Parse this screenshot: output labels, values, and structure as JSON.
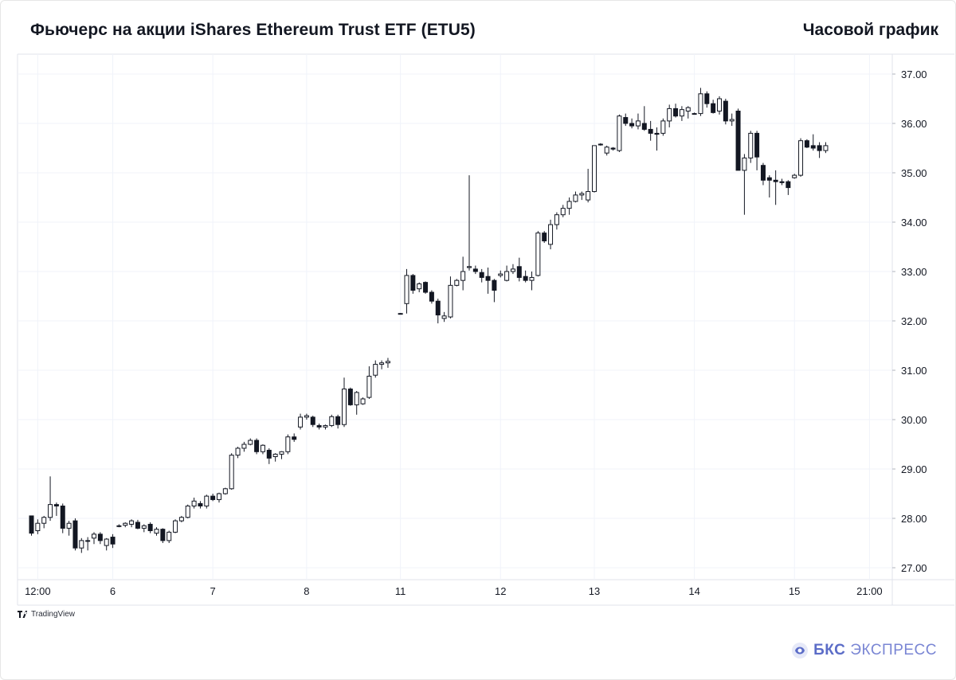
{
  "header": {
    "title": "Фьючерс на акции iShares Ethereum Trust ETF (ETU5)",
    "timeframe": "Часовой график"
  },
  "footer": {
    "tv_logo_text": "TradingView",
    "brand_bold": "БКС",
    "brand_rest": "ЭКСПРЕСС"
  },
  "colors": {
    "up_fill": "#ffffff",
    "down_fill": "#131722",
    "wick": "#131722",
    "grid": "#f0f3fa",
    "axis_text": "#131722",
    "brand": "#5b6cc7"
  },
  "chart_data": {
    "type": "candlestick",
    "title": "Фьючерс на акции iShares Ethereum Trust ETF (ETU5)",
    "timeframe": "Часовой график",
    "ylim": [
      26.8,
      37.2
    ],
    "y_ticks": [
      "27.00",
      "28.00",
      "29.00",
      "30.00",
      "31.00",
      "32.00",
      "33.00",
      "34.00",
      "35.00",
      "36.00",
      "37.00"
    ],
    "x_ticks": [
      {
        "label": "12:00",
        "index": 1
      },
      {
        "label": "6",
        "index": 13
      },
      {
        "label": "7",
        "index": 29
      },
      {
        "label": "8",
        "index": 44
      },
      {
        "label": "11",
        "index": 59
      },
      {
        "label": "12",
        "index": 75
      },
      {
        "label": "13",
        "index": 90
      },
      {
        "label": "14",
        "index": 106
      },
      {
        "label": "15",
        "index": 122
      },
      {
        "label": "21:00",
        "index": 134
      }
    ],
    "candles": [
      [
        28.05,
        28.02,
        27.65,
        27.7
      ],
      [
        27.75,
        27.98,
        27.68,
        27.9
      ],
      [
        27.9,
        28.05,
        27.8,
        28.02
      ],
      [
        28.02,
        28.85,
        27.95,
        28.28
      ],
      [
        28.28,
        28.32,
        28.05,
        28.25
      ],
      [
        28.25,
        28.3,
        27.7,
        27.8
      ],
      [
        27.8,
        27.95,
        27.65,
        27.9
      ],
      [
        27.95,
        28.0,
        27.35,
        27.4
      ],
      [
        27.4,
        27.6,
        27.3,
        27.55
      ],
      [
        27.55,
        27.62,
        27.35,
        27.55
      ],
      [
        27.6,
        27.72,
        27.48,
        27.68
      ],
      [
        27.68,
        27.72,
        27.48,
        27.55
      ],
      [
        27.45,
        27.6,
        27.35,
        27.58
      ],
      [
        27.62,
        27.68,
        27.4,
        27.48
      ],
      [
        27.85,
        27.88,
        27.82,
        27.85
      ],
      [
        27.86,
        27.92,
        27.82,
        27.9
      ],
      [
        27.88,
        27.98,
        27.82,
        27.95
      ],
      [
        27.92,
        27.97,
        27.78,
        27.8
      ],
      [
        27.8,
        27.88,
        27.72,
        27.85
      ],
      [
        27.88,
        27.92,
        27.7,
        27.75
      ],
      [
        27.7,
        27.82,
        27.65,
        27.78
      ],
      [
        27.78,
        27.8,
        27.5,
        27.55
      ],
      [
        27.55,
        27.75,
        27.5,
        27.72
      ],
      [
        27.72,
        27.98,
        27.7,
        27.95
      ],
      [
        27.95,
        28.05,
        27.92,
        28.02
      ],
      [
        28.02,
        28.28,
        28.0,
        28.25
      ],
      [
        28.25,
        28.42,
        28.2,
        28.35
      ],
      [
        28.3,
        28.35,
        28.2,
        28.25
      ],
      [
        28.25,
        28.48,
        28.2,
        28.45
      ],
      [
        28.45,
        28.5,
        28.35,
        28.38
      ],
      [
        28.38,
        28.52,
        28.32,
        28.5
      ],
      [
        28.5,
        28.62,
        28.48,
        28.6
      ],
      [
        28.6,
        29.32,
        28.58,
        29.28
      ],
      [
        29.28,
        29.45,
        29.22,
        29.42
      ],
      [
        29.42,
        29.55,
        29.35,
        29.5
      ],
      [
        29.5,
        29.62,
        29.48,
        29.58
      ],
      [
        29.58,
        29.62,
        29.3,
        29.35
      ],
      [
        29.35,
        29.5,
        29.3,
        29.48
      ],
      [
        29.38,
        29.42,
        29.1,
        29.22
      ],
      [
        29.25,
        29.32,
        29.15,
        29.3
      ],
      [
        29.3,
        29.36,
        29.2,
        29.35
      ],
      [
        29.35,
        29.7,
        29.3,
        29.65
      ],
      [
        29.65,
        29.72,
        29.55,
        29.6
      ],
      [
        29.85,
        30.12,
        29.8,
        30.05
      ],
      [
        30.05,
        30.12,
        30.0,
        30.08
      ],
      [
        30.05,
        30.08,
        29.85,
        29.9
      ],
      [
        29.88,
        29.92,
        29.8,
        29.85
      ],
      [
        29.85,
        29.9,
        29.8,
        29.88
      ],
      [
        29.88,
        30.1,
        29.85,
        30.06
      ],
      [
        30.06,
        30.1,
        29.82,
        29.9
      ],
      [
        29.9,
        30.85,
        29.85,
        30.62
      ],
      [
        30.62,
        30.65,
        30.28,
        30.3
      ],
      [
        30.3,
        30.58,
        30.1,
        30.55
      ],
      [
        30.32,
        30.45,
        30.3,
        30.42
      ],
      [
        30.45,
        31.08,
        30.42,
        30.88
      ],
      [
        30.9,
        31.2,
        30.85,
        31.12
      ],
      [
        31.12,
        31.2,
        31.02,
        31.15
      ],
      [
        31.15,
        31.25,
        31.05,
        31.18
      ],
      null,
      [
        32.15,
        32.16,
        32.14,
        32.15
      ],
      [
        32.35,
        33.05,
        32.15,
        32.92
      ],
      [
        32.92,
        32.95,
        32.55,
        32.62
      ],
      [
        32.65,
        32.78,
        32.58,
        32.75
      ],
      [
        32.78,
        32.8,
        32.55,
        32.58
      ],
      [
        32.58,
        32.62,
        32.35,
        32.4
      ],
      [
        32.4,
        32.45,
        31.95,
        32.12
      ],
      [
        32.05,
        32.18,
        31.98,
        32.1
      ],
      [
        32.08,
        32.9,
        32.05,
        32.72
      ],
      [
        32.72,
        32.85,
        32.7,
        32.82
      ],
      [
        32.82,
        33.3,
        32.62,
        33.0
      ],
      [
        33.08,
        34.95,
        33.02,
        33.1
      ],
      [
        33.05,
        33.12,
        32.95,
        33.0
      ],
      [
        32.98,
        33.05,
        32.78,
        32.88
      ],
      [
        32.9,
        33.08,
        32.55,
        32.82
      ],
      [
        32.82,
        32.85,
        32.38,
        32.62
      ],
      [
        32.92,
        33.02,
        32.88,
        32.95
      ],
      [
        32.82,
        33.12,
        32.8,
        33.0
      ],
      [
        33.0,
        33.15,
        32.95,
        33.05
      ],
      [
        33.1,
        33.28,
        32.8,
        32.88
      ],
      [
        32.9,
        33.02,
        32.78,
        32.82
      ],
      [
        32.82,
        33.0,
        32.62,
        32.88
      ],
      [
        32.92,
        33.82,
        32.9,
        33.78
      ],
      [
        33.78,
        33.82,
        33.58,
        33.62
      ],
      [
        33.55,
        34.05,
        33.45,
        33.95
      ],
      [
        33.95,
        34.2,
        33.85,
        34.15
      ],
      [
        34.15,
        34.35,
        34.1,
        34.28
      ],
      [
        34.28,
        34.5,
        34.15,
        34.42
      ],
      [
        34.42,
        34.62,
        34.4,
        34.55
      ],
      [
        34.55,
        34.62,
        34.45,
        34.58
      ],
      [
        34.45,
        35.08,
        34.4,
        34.62
      ],
      [
        34.62,
        35.52,
        34.6,
        35.55
      ],
      [
        35.58,
        35.6,
        35.55,
        35.58
      ],
      [
        35.4,
        35.55,
        35.35,
        35.52
      ],
      [
        35.5,
        35.52,
        35.45,
        35.48
      ],
      [
        35.45,
        36.18,
        35.42,
        36.15
      ],
      [
        36.12,
        36.2,
        35.95,
        36.0
      ],
      [
        36.0,
        36.1,
        35.9,
        35.95
      ],
      [
        35.95,
        36.2,
        35.88,
        36.05
      ],
      [
        36.0,
        36.35,
        35.85,
        35.88
      ],
      [
        35.88,
        36.05,
        35.65,
        35.8
      ],
      [
        35.8,
        35.92,
        35.45,
        35.78
      ],
      [
        35.8,
        36.1,
        35.75,
        36.05
      ],
      [
        36.05,
        36.38,
        35.92,
        36.3
      ],
      [
        36.3,
        36.4,
        36.12,
        36.15
      ],
      [
        36.15,
        36.35,
        36.05,
        36.28
      ],
      [
        36.25,
        36.35,
        36.1,
        36.32
      ],
      [
        36.2,
        36.22,
        36.18,
        36.2
      ],
      [
        36.2,
        36.72,
        36.15,
        36.6
      ],
      [
        36.6,
        36.65,
        36.32,
        36.4
      ],
      [
        36.4,
        36.48,
        36.2,
        36.22
      ],
      [
        36.25,
        36.55,
        36.18,
        36.5
      ],
      [
        36.45,
        36.5,
        35.98,
        36.05
      ],
      [
        36.05,
        36.2,
        35.95,
        36.08
      ],
      [
        36.25,
        36.3,
        35.05,
        35.05
      ],
      [
        35.05,
        35.38,
        34.15,
        35.3
      ],
      [
        35.3,
        35.85,
        35.2,
        35.8
      ],
      [
        35.8,
        35.85,
        35.05,
        35.32
      ],
      [
        35.15,
        35.2,
        34.75,
        34.85
      ],
      [
        34.9,
        34.95,
        34.5,
        34.85
      ],
      [
        34.85,
        35.05,
        34.35,
        34.82
      ],
      [
        34.82,
        34.88,
        34.75,
        34.8
      ],
      [
        34.82,
        34.85,
        34.55,
        34.7
      ],
      [
        34.9,
        34.98,
        34.88,
        34.95
      ],
      [
        34.95,
        35.7,
        34.92,
        35.65
      ],
      [
        35.65,
        35.68,
        35.5,
        35.52
      ],
      [
        35.55,
        35.78,
        35.45,
        35.5
      ],
      [
        35.55,
        35.62,
        35.3,
        35.45
      ],
      [
        35.45,
        35.62,
        35.4,
        35.55
      ]
    ],
    "candle_fields": [
      "open",
      "high",
      "low",
      "close"
    ]
  }
}
